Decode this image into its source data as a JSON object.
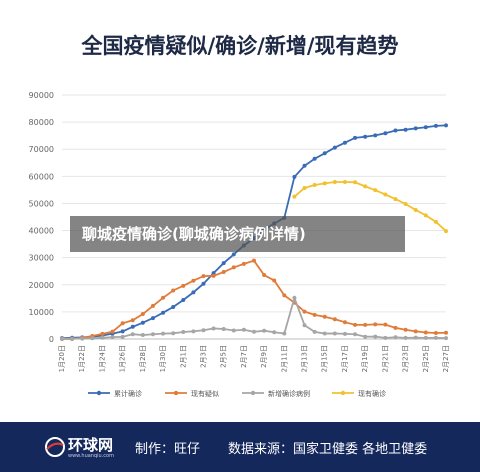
{
  "title": "全国疫情疑似/确诊/新增/现有趋势",
  "overlay_caption": "聊城疫情确诊(聊城确诊病例详情)",
  "footer": {
    "logo_text": "环球网",
    "logo_url": "www.huanqiu.com",
    "maker": "制作：旺仔",
    "source": "数据来源：国家卫健委 各地卫健委"
  },
  "chart_data": {
    "type": "line",
    "ylim": [
      0,
      90000
    ],
    "yticks": [
      0,
      10000,
      20000,
      30000,
      40000,
      50000,
      60000,
      70000,
      80000,
      90000
    ],
    "x": [
      "1月20日",
      "1月21日",
      "1月22日",
      "1月23日",
      "1月24日",
      "1月25日",
      "1月26日",
      "1月27日",
      "1月28日",
      "1月29日",
      "1月30日",
      "1月31日",
      "2月1日",
      "2月2日",
      "2月3日",
      "2月4日",
      "2月5日",
      "2月6日",
      "2月7日",
      "2月8日",
      "2月9日",
      "2月10日",
      "2月11日",
      "2月12日",
      "2月13日",
      "2月14日",
      "2月15日",
      "2月16日",
      "2月17日",
      "2月18日",
      "2月19日",
      "2月20日",
      "2月21日",
      "2月22日",
      "2月23日",
      "2月24日",
      "2月25日",
      "2月26日",
      "2月27日"
    ],
    "xticklabels": [
      "1月20日",
      "",
      "1月22日",
      "",
      "1月24日",
      "",
      "1月26日",
      "",
      "1月28日",
      "",
      "1月30日",
      "",
      "2月1日",
      "",
      "2月3日",
      "",
      "2月5日",
      "",
      "2月7日",
      "",
      "2月9日",
      "",
      "2月11日",
      "",
      "2月13日",
      "",
      "2月15日",
      "",
      "2月17日",
      "",
      "2月19日",
      "",
      "2月21日",
      "",
      "2月23日",
      "",
      "2月25日",
      "",
      "2月27日"
    ],
    "grid": true,
    "legend_position": "bottom",
    "series": [
      {
        "name": "累计确诊",
        "color": "#3a6bb5",
        "values": [
          300,
          440,
          580,
          830,
          1300,
          2000,
          2800,
          4500,
          6000,
          7700,
          9700,
          11800,
          14400,
          17200,
          20400,
          24300,
          28000,
          31200,
          34500,
          37200,
          40200,
          42600,
          44700,
          59800,
          63900,
          66500,
          68500,
          70600,
          72400,
          74200,
          74600,
          75100,
          75900,
          76900,
          77200,
          77700,
          78100,
          78600,
          78800
        ]
      },
      {
        "name": "现有疑似",
        "color": "#e07b39",
        "values": [
          0,
          0,
          400,
          1100,
          1900,
          2700,
          5800,
          6900,
          9200,
          12200,
          15200,
          17900,
          19600,
          21500,
          23200,
          23300,
          24700,
          26400,
          27700,
          28900,
          23600,
          21600,
          16100,
          13400,
          10100,
          8900,
          8200,
          7300,
          6200,
          5200,
          5200,
          5400,
          5300,
          4100,
          3400,
          2800,
          2400,
          2200,
          2300
        ]
      },
      {
        "name": "新增确诊病例",
        "color": "#a6a6a6",
        "values": [
          80,
          150,
          130,
          260,
          440,
          690,
          770,
          1770,
          1460,
          1740,
          1980,
          2100,
          2590,
          2830,
          3240,
          3890,
          3690,
          3140,
          3400,
          2660,
          3060,
          2480,
          2020,
          15150,
          5090,
          2640,
          2010,
          2050,
          1890,
          1750,
          820,
          890,
          400,
          650,
          410,
          510,
          410,
          430,
          330
        ]
      },
      {
        "name": "现有确诊",
        "color": "#f2c12e",
        "values": [
          null,
          null,
          null,
          null,
          null,
          null,
          null,
          null,
          null,
          null,
          null,
          null,
          null,
          null,
          null,
          null,
          null,
          null,
          null,
          null,
          null,
          null,
          null,
          52500,
          55700,
          56800,
          57400,
          57900,
          57900,
          57800,
          56300,
          54900,
          53300,
          51600,
          49800,
          47600,
          45600,
          43200,
          39800
        ]
      }
    ]
  }
}
